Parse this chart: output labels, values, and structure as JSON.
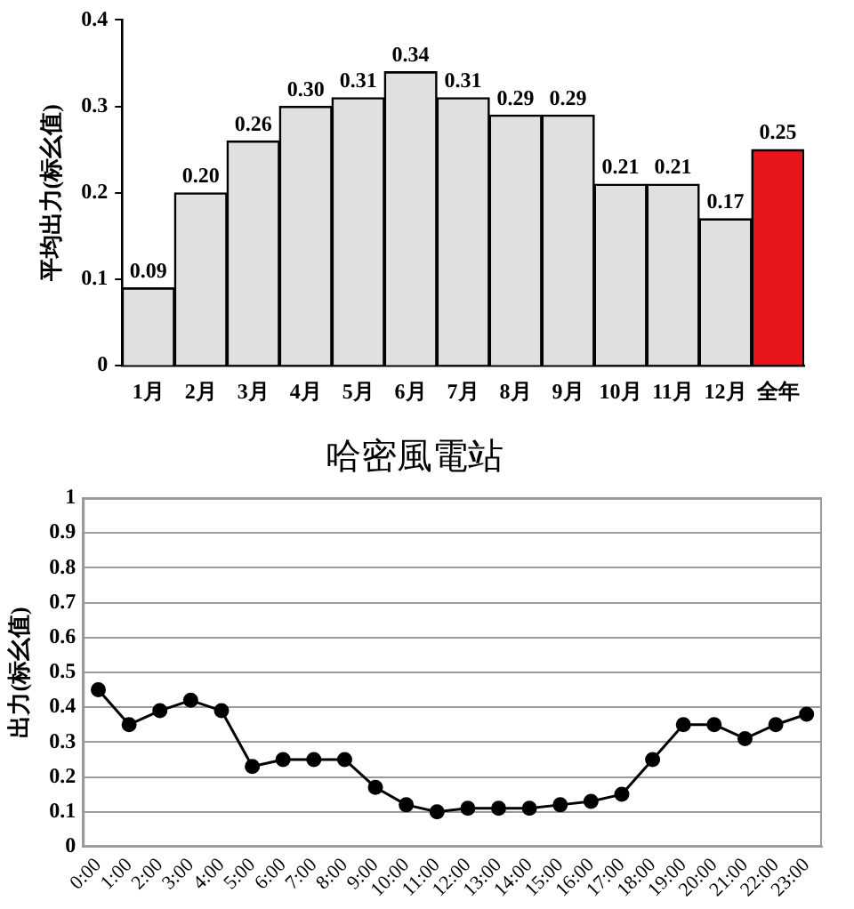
{
  "chart_data": [
    {
      "type": "bar",
      "ylabel": "平均出力(标幺值)",
      "categories": [
        "1月",
        "2月",
        "3月",
        "4月",
        "5月",
        "6月",
        "7月",
        "8月",
        "9月",
        "10月",
        "11月",
        "12月",
        "全年"
      ],
      "values": [
        0.09,
        0.2,
        0.26,
        0.3,
        0.31,
        0.34,
        0.31,
        0.29,
        0.29,
        0.21,
        0.21,
        0.17,
        0.25
      ],
      "value_labels": [
        "0.09",
        "0.20",
        "0.26",
        "0.30",
        "0.31",
        "0.34",
        "0.31",
        "0.29",
        "0.29",
        "0.21",
        "0.21",
        "0.17",
        "0.25"
      ],
      "colors": [
        "#e0e0e0",
        "#e0e0e0",
        "#e0e0e0",
        "#e0e0e0",
        "#e0e0e0",
        "#e0e0e0",
        "#e0e0e0",
        "#e0e0e0",
        "#e0e0e0",
        "#e0e0e0",
        "#e0e0e0",
        "#e0e0e0",
        "#e8141c"
      ],
      "ylim": [
        0,
        0.4
      ],
      "yticks": [
        0,
        0.1,
        0.2,
        0.3,
        0.4
      ],
      "grid": false
    },
    {
      "type": "line",
      "title": "哈密風電站",
      "ylabel": "出力(标幺值)",
      "categories": [
        "0:00",
        "1:00",
        "2:00",
        "3:00",
        "4:00",
        "5:00",
        "6:00",
        "7:00",
        "8:00",
        "9:00",
        "10:00",
        "11:00",
        "12:00",
        "13:00",
        "14:00",
        "15:00",
        "16:00",
        "17:00",
        "18:00",
        "19:00",
        "20:00",
        "21:00",
        "22:00",
        "23:00"
      ],
      "values": [
        0.45,
        0.35,
        0.39,
        0.42,
        0.39,
        0.23,
        0.25,
        0.25,
        0.25,
        0.17,
        0.12,
        0.1,
        0.11,
        0.11,
        0.11,
        0.12,
        0.13,
        0.15,
        0.25,
        0.35,
        0.35,
        0.31,
        0.35,
        0.38
      ],
      "color": "#000000",
      "marker": "circle",
      "line_style": "solid",
      "ylim": [
        0,
        1
      ],
      "yticks": [
        0,
        0.1,
        0.2,
        0.3,
        0.4,
        0.5,
        0.6,
        0.7,
        0.8,
        0.9,
        1
      ],
      "grid": "y"
    }
  ]
}
